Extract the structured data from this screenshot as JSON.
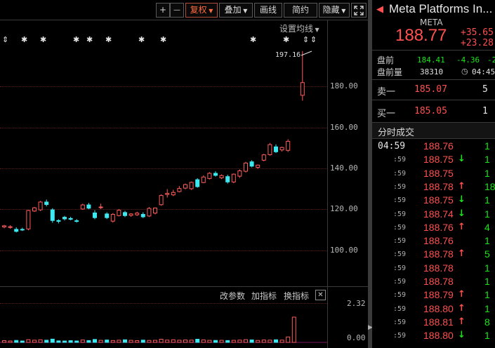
{
  "toolbar": {
    "zoom_in": "+",
    "zoom_out": "—",
    "fq_label": "复权",
    "overlay_label": "叠加",
    "draw_label": "画线",
    "simple_label": "简约",
    "hide_label": "隐藏"
  },
  "chart": {
    "settings_label": "设置均线",
    "high_marker": "197.16",
    "price_axis": [
      "180.00",
      "160.00",
      "140.00",
      "120.00",
      "100.00"
    ],
    "indicator_bar": {
      "params_label": "改参数",
      "add_label": "加指标",
      "switch_label": "换指标",
      "close_symbol": "☒"
    },
    "volume_axis": [
      "2.32",
      "0.00"
    ],
    "colors": {
      "up": "#ff5c5c",
      "down": "#3de8f0",
      "grid": "#5a1a1a"
    }
  },
  "chart_data": {
    "type": "candlestick",
    "ylim": [
      95,
      205
    ],
    "price_ticks": [
      100,
      120,
      140,
      160,
      180
    ],
    "volume_ticks": [
      0.0,
      2.32
    ],
    "high_label_value": 197.16,
    "candles": [
      {
        "o": 111.5,
        "h": 112.5,
        "l": 110.8,
        "c": 112.0
      },
      {
        "o": 111.2,
        "h": 112.3,
        "l": 110.6,
        "c": 111.6
      },
      {
        "o": 110.3,
        "h": 111.3,
        "l": 108.8,
        "c": 109.3
      },
      {
        "o": 110.3,
        "h": 111.1,
        "l": 109.5,
        "c": 110.0
      },
      {
        "o": 110.5,
        "h": 119.8,
        "l": 109.8,
        "c": 119.5
      },
      {
        "o": 119.2,
        "h": 121.2,
        "l": 118.8,
        "c": 120.8
      },
      {
        "o": 119.8,
        "h": 124.2,
        "l": 119.2,
        "c": 123.6
      },
      {
        "o": 123.6,
        "h": 124.8,
        "l": 121.5,
        "c": 122.4
      },
      {
        "o": 119.8,
        "h": 120.6,
        "l": 113.5,
        "c": 114.6
      },
      {
        "o": 114.6,
        "h": 115.2,
        "l": 113.2,
        "c": 114.2
      },
      {
        "o": 116.2,
        "h": 116.9,
        "l": 114.6,
        "c": 115.4
      },
      {
        "o": 115.6,
        "h": 116.4,
        "l": 114.7,
        "c": 115.2
      },
      {
        "o": 114.5,
        "h": 115.3,
        "l": 113.6,
        "c": 114.4
      },
      {
        "o": 120.2,
        "h": 122.8,
        "l": 119.8,
        "c": 122.2
      },
      {
        "o": 122.2,
        "h": 123.2,
        "l": 120.1,
        "c": 120.6
      },
      {
        "o": 118.3,
        "h": 119.6,
        "l": 115.2,
        "c": 116.0
      },
      {
        "o": 120.9,
        "h": 122.8,
        "l": 120.2,
        "c": 121.2
      },
      {
        "o": 117.8,
        "h": 118.6,
        "l": 115.3,
        "c": 116.0
      },
      {
        "o": 114.3,
        "h": 118.2,
        "l": 113.6,
        "c": 117.6
      },
      {
        "o": 117.0,
        "h": 120.2,
        "l": 116.6,
        "c": 119.6
      },
      {
        "o": 118.5,
        "h": 119.3,
        "l": 116.3,
        "c": 117.0
      },
      {
        "o": 117.1,
        "h": 118.2,
        "l": 116.4,
        "c": 117.8
      },
      {
        "o": 117.4,
        "h": 118.9,
        "l": 116.8,
        "c": 118.2
      },
      {
        "o": 117.6,
        "h": 118.6,
        "l": 115.8,
        "c": 116.4
      },
      {
        "o": 116.8,
        "h": 121.2,
        "l": 116.3,
        "c": 120.5
      },
      {
        "o": 118.2,
        "h": 121.0,
        "l": 117.6,
        "c": 120.7
      },
      {
        "o": 122.3,
        "h": 127.3,
        "l": 121.8,
        "c": 126.8
      },
      {
        "o": 127.3,
        "h": 129.9,
        "l": 125.8,
        "c": 127.8
      },
      {
        "o": 127.1,
        "h": 129.6,
        "l": 126.5,
        "c": 128.3
      },
      {
        "o": 128.7,
        "h": 131.4,
        "l": 128.3,
        "c": 130.2
      },
      {
        "o": 130.4,
        "h": 132.6,
        "l": 129.8,
        "c": 132.1
      },
      {
        "o": 130.1,
        "h": 133.6,
        "l": 129.5,
        "c": 133.2
      },
      {
        "o": 134.5,
        "h": 135.2,
        "l": 130.6,
        "c": 131.1
      },
      {
        "o": 133.1,
        "h": 136.6,
        "l": 132.8,
        "c": 135.8
      },
      {
        "o": 135.1,
        "h": 138.2,
        "l": 134.6,
        "c": 137.6
      },
      {
        "o": 137.6,
        "h": 138.6,
        "l": 136.0,
        "c": 136.6
      },
      {
        "o": 135.4,
        "h": 137.1,
        "l": 134.8,
        "c": 136.5
      },
      {
        "o": 136.0,
        "h": 136.9,
        "l": 132.6,
        "c": 133.4
      },
      {
        "o": 133.4,
        "h": 137.5,
        "l": 132.8,
        "c": 137.2
      },
      {
        "o": 136.2,
        "h": 139.5,
        "l": 135.4,
        "c": 138.8
      },
      {
        "o": 138.6,
        "h": 143.2,
        "l": 138.0,
        "c": 142.6
      },
      {
        "o": 143.2,
        "h": 144.0,
        "l": 140.5,
        "c": 141.1
      },
      {
        "o": 140.5,
        "h": 141.9,
        "l": 139.7,
        "c": 141.6
      },
      {
        "o": 144.0,
        "h": 147.1,
        "l": 143.4,
        "c": 146.6
      },
      {
        "o": 146.7,
        "h": 152.4,
        "l": 146.2,
        "c": 151.6
      },
      {
        "o": 150.5,
        "h": 151.7,
        "l": 147.5,
        "c": 148.1
      },
      {
        "o": 149.0,
        "h": 150.6,
        "l": 148.2,
        "c": 150.2
      },
      {
        "o": 148.8,
        "h": 154.2,
        "l": 148.0,
        "c": 153.2
      },
      {
        "o": 175.6,
        "h": 197.16,
        "l": 173.0,
        "c": 181.8
      }
    ],
    "volume": [
      0.16,
      0.13,
      0.18,
      0.12,
      0.25,
      0.2,
      0.24,
      0.2,
      0.3,
      0.14,
      0.12,
      0.16,
      0.12,
      0.22,
      0.17,
      0.27,
      0.19,
      0.22,
      0.17,
      0.2,
      0.24,
      0.19,
      0.16,
      0.21,
      0.18,
      0.19,
      0.29,
      0.21,
      0.24,
      0.2,
      0.22,
      0.21,
      0.29,
      0.23,
      0.19,
      0.18,
      0.19,
      0.17,
      0.19,
      0.21,
      0.25,
      0.23,
      0.18,
      0.22,
      0.21,
      0.24,
      0.21,
      0.5,
      2.32
    ]
  },
  "quote": {
    "name": "Meta Platforms In...",
    "ticker": "META",
    "price": "188.77",
    "change": "+35.65",
    "change_pct": "+23.28",
    "pre_label": "盘前",
    "pre_price": "184.41",
    "pre_change": "-4.36",
    "pre_pct": "-2",
    "pre_vol_label": "盘前量",
    "pre_vol": "38310",
    "pre_time": "04:45",
    "ask_label": "卖一",
    "ask_price": "185.07",
    "ask_size": "5",
    "bid_label": "买一",
    "bid_price": "185.05",
    "bid_size": "1",
    "trades_title": "分时成交"
  },
  "trades": [
    {
      "time": "04:59",
      "price": "188.76",
      "arrow": "",
      "vol": "1"
    },
    {
      "time": ":59",
      "price": "188.75",
      "arrow": "↓",
      "vol": "1"
    },
    {
      "time": ":59",
      "price": "188.75",
      "arrow": "",
      "vol": "1"
    },
    {
      "time": ":59",
      "price": "188.78",
      "arrow": "↑",
      "vol": "18"
    },
    {
      "time": ":59",
      "price": "188.75",
      "arrow": "↓",
      "vol": "1"
    },
    {
      "time": ":59",
      "price": "188.74",
      "arrow": "↓",
      "vol": "1"
    },
    {
      "time": ":59",
      "price": "188.76",
      "arrow": "↑",
      "vol": "4"
    },
    {
      "time": ":59",
      "price": "188.76",
      "arrow": "",
      "vol": "1"
    },
    {
      "time": ":59",
      "price": "188.78",
      "arrow": "↑",
      "vol": "5"
    },
    {
      "time": ":59",
      "price": "188.78",
      "arrow": "",
      "vol": "1"
    },
    {
      "time": ":59",
      "price": "188.78",
      "arrow": "",
      "vol": "1"
    },
    {
      "time": ":59",
      "price": "188.79",
      "arrow": "↑",
      "vol": "1"
    },
    {
      "time": ":59",
      "price": "188.80",
      "arrow": "↑",
      "vol": "1"
    },
    {
      "time": ":59",
      "price": "188.81",
      "arrow": "↑",
      "vol": "8"
    },
    {
      "time": ":59",
      "price": "188.80",
      "arrow": "↓",
      "vol": "1"
    }
  ]
}
